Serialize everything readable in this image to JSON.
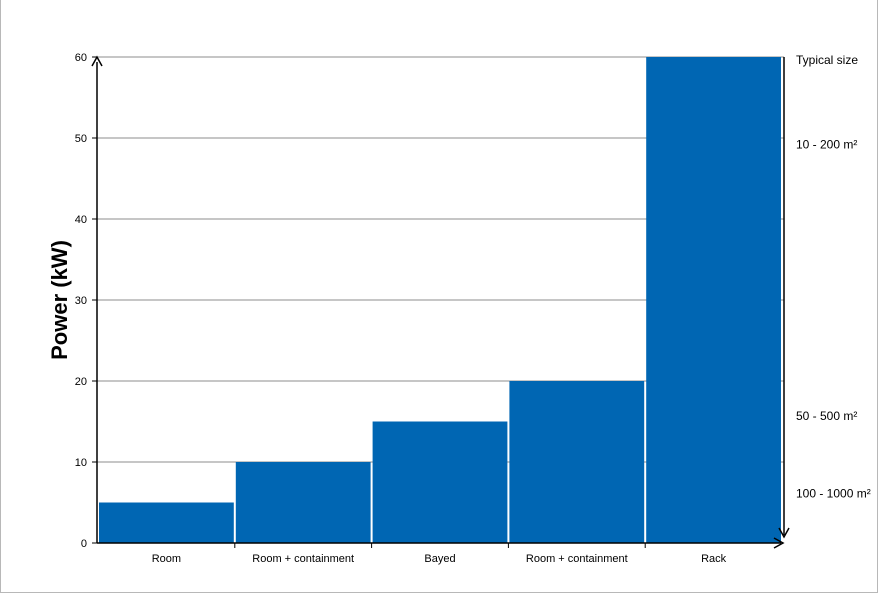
{
  "chart_data": {
    "type": "bar",
    "categories": [
      "Room",
      "Room + containment",
      "Bayed",
      "Room + containment",
      "Rack"
    ],
    "values": [
      5,
      10,
      15,
      20,
      60
    ],
    "title": "",
    "xlabel": "",
    "ylabel": "Power  (kW)",
    "ylim": [
      0,
      60
    ],
    "yticks": [
      "0",
      "10",
      "20",
      "30",
      "40",
      "50",
      "60"
    ],
    "grid": true,
    "bar_color": "#0066b3",
    "secondary_axis": {
      "title": "Typical size",
      "labels": [
        {
          "text": "10 - 200 m²",
          "value": 48.7
        },
        {
          "text": "50 - 500 m²",
          "value": 15.2
        },
        {
          "text": "100 - 1000 m²",
          "value": 5.6
        }
      ]
    }
  }
}
